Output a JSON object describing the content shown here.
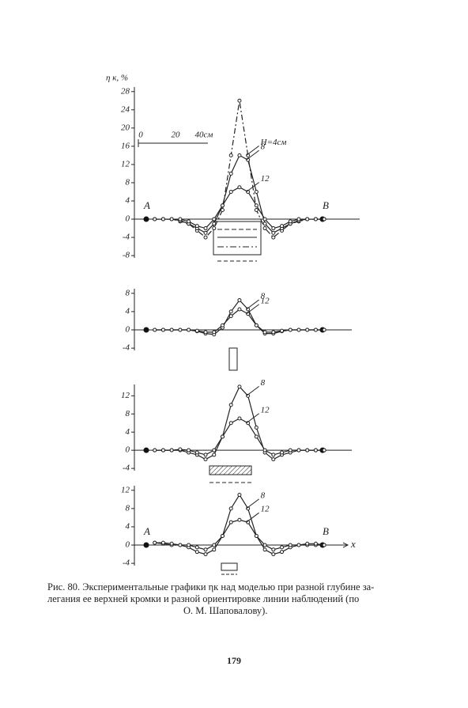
{
  "chart_data": [
    {
      "type": "line",
      "y_label": "η к, %",
      "xlim": [
        -2,
        130
      ],
      "ylim": [
        -8.5,
        29
      ],
      "yticks": [
        28,
        24,
        20,
        16,
        12,
        8,
        4,
        0,
        -4,
        -8
      ],
      "scale_labels": [
        "0",
        "20",
        "40см"
      ],
      "point_labels": [
        "A",
        "B"
      ],
      "x": [
        10,
        15,
        20,
        25,
        30,
        35,
        40,
        45,
        50,
        55,
        60,
        65,
        70,
        75,
        80,
        85,
        90,
        95,
        100,
        105,
        110
      ],
      "series": [
        {
          "name": "H=4см",
          "color": "#222",
          "dash": true,
          "values": [
            0,
            0,
            0,
            -0.5,
            -1,
            -2.5,
            -4,
            -2,
            2,
            14,
            26,
            14,
            2,
            -2,
            -4,
            -2.5,
            -1,
            -0.5,
            0,
            0,
            0
          ]
        },
        {
          "name": "8",
          "color": "#222",
          "dash": false,
          "values": [
            0,
            0,
            0,
            -0.3,
            -1,
            -2,
            -3,
            -1,
            3,
            10,
            14,
            13,
            6,
            -1,
            -3,
            -2,
            -1,
            -0.3,
            0,
            0,
            0
          ]
        },
        {
          "name": "12",
          "color": "#222",
          "dash": false,
          "values": [
            0,
            0,
            0,
            0,
            -0.5,
            -1.5,
            -2,
            0,
            3,
            6,
            7,
            6,
            3,
            0,
            -2,
            -1.5,
            -0.5,
            0,
            0,
            0,
            0
          ]
        }
      ]
    },
    {
      "type": "line",
      "xlim": [
        -2,
        130
      ],
      "ylim": [
        -4.5,
        9
      ],
      "yticks": [
        8,
        4,
        0,
        -4
      ],
      "x": [
        10,
        15,
        20,
        25,
        30,
        35,
        40,
        45,
        50,
        55,
        60,
        65,
        70,
        75,
        80,
        85,
        90,
        95,
        100,
        105,
        110
      ],
      "series": [
        {
          "name": "8",
          "color": "#222",
          "dash": false,
          "values": [
            0,
            0,
            0,
            0,
            0,
            -0.3,
            -0.8,
            -1,
            0.5,
            4,
            6.5,
            4.5,
            1,
            -0.8,
            -0.8,
            -0.3,
            0,
            0,
            0,
            0,
            0
          ]
        },
        {
          "name": "12",
          "color": "#222",
          "dash": false,
          "values": [
            0,
            0,
            0,
            0,
            0,
            -0.2,
            -0.5,
            -0.5,
            1,
            3,
            4.5,
            3.5,
            1,
            -0.5,
            -0.5,
            -0.2,
            0,
            0,
            0,
            0,
            0
          ]
        }
      ]
    },
    {
      "type": "line",
      "xlim": [
        -2,
        130
      ],
      "ylim": [
        -4.5,
        14.5
      ],
      "yticks": [
        12,
        8,
        4,
        0,
        -4
      ],
      "x": [
        10,
        15,
        20,
        25,
        30,
        35,
        40,
        45,
        50,
        55,
        60,
        65,
        70,
        75,
        80,
        85,
        90,
        95,
        100,
        105,
        110
      ],
      "series": [
        {
          "name": "8",
          "color": "#222",
          "dash": false,
          "values": [
            0,
            0,
            0,
            0,
            -0.5,
            -1,
            -2,
            -1,
            3,
            10,
            14,
            12,
            5,
            -0.5,
            -2,
            -1,
            -0.5,
            0,
            0,
            0,
            0
          ]
        },
        {
          "name": "12",
          "color": "#222",
          "dash": false,
          "values": [
            0,
            0,
            0,
            0.2,
            0,
            -0.5,
            -1,
            0,
            3,
            6,
            7,
            6,
            3,
            0,
            -1,
            -0.5,
            0,
            0,
            0,
            0,
            0
          ]
        }
      ]
    },
    {
      "type": "line",
      "xlim": [
        -2,
        130
      ],
      "ylim": [
        -4.5,
        13
      ],
      "yticks": [
        12,
        8,
        4,
        0,
        -4
      ],
      "point_labels": [
        "A",
        "B"
      ],
      "x_label": "x",
      "x": [
        10,
        15,
        20,
        25,
        30,
        35,
        40,
        45,
        50,
        55,
        60,
        65,
        70,
        75,
        80,
        85,
        90,
        95,
        100,
        105,
        110
      ],
      "series": [
        {
          "name": "8",
          "color": "#222",
          "dash": false,
          "values": [
            0.5,
            0.3,
            0,
            0,
            -0.5,
            -1.5,
            -2,
            -1,
            2,
            8,
            11,
            8,
            2,
            -1,
            -2,
            -1.5,
            -0.5,
            0,
            0,
            0,
            0
          ]
        },
        {
          "name": "12",
          "color": "#222",
          "dash": false,
          "values": [
            0.5,
            0.5,
            0.3,
            0,
            0,
            -0.5,
            -1,
            0,
            2,
            5,
            5.5,
            5,
            2,
            0,
            -1,
            -0.5,
            0,
            0,
            0.3,
            0.3,
            0
          ]
        }
      ]
    }
  ],
  "caption_lines": [
    "Рис. 80. Экспериментальные графики ηк над моделью при разной глубине за-",
    "легания ее верхней кромки и разной ориентировке линии наблюдений (по",
    "О. М. Шаповалову)."
  ],
  "page_number": "179"
}
